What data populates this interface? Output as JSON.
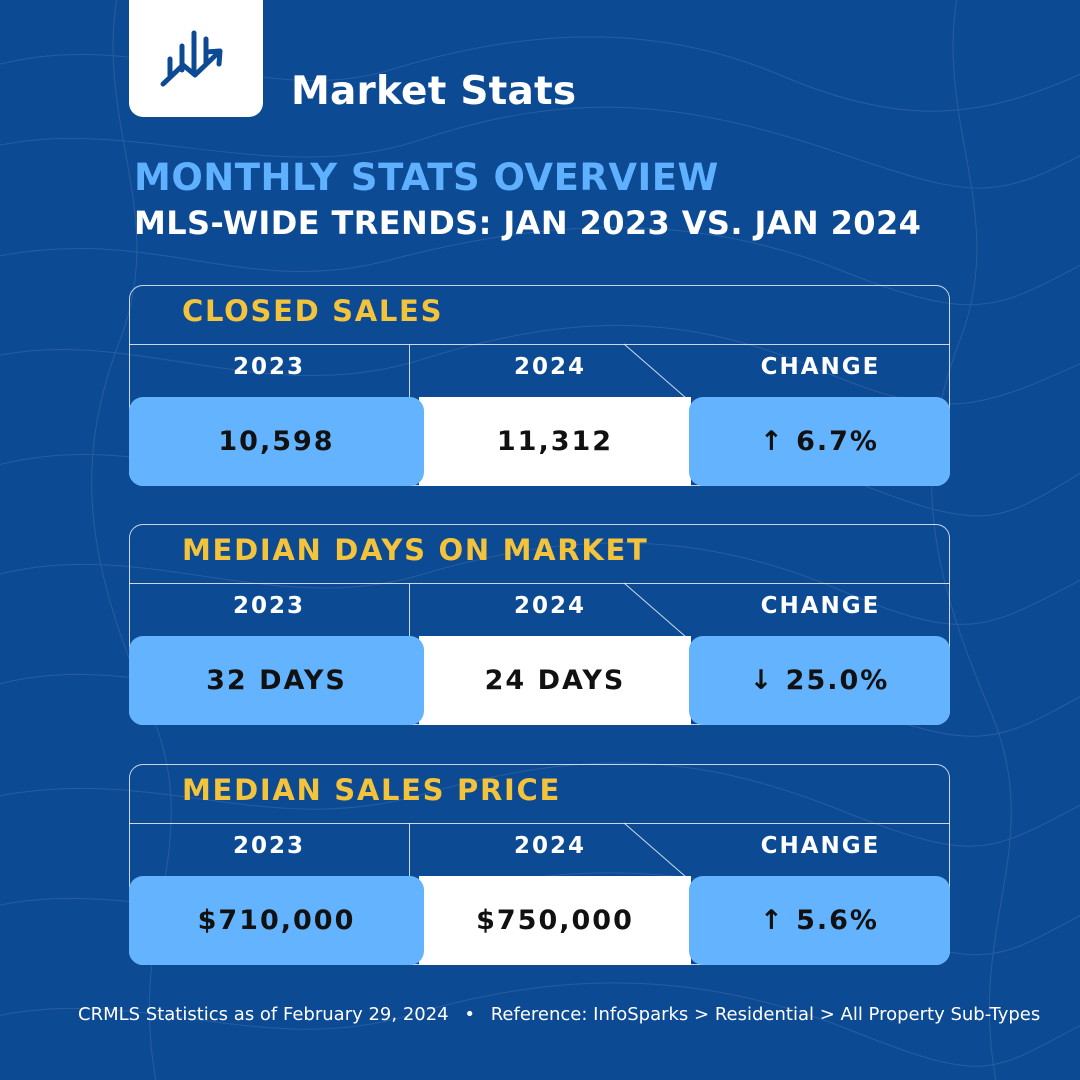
{
  "brand": {
    "logo_icon": "bar-chart-trend-icon",
    "title": "Market Stats"
  },
  "headings": {
    "overview": "MONTHLY STATS OVERVIEW",
    "trends": "MLS-WIDE TRENDS: JAN 2023 VS. JAN 2024"
  },
  "cards": [
    {
      "title": "CLOSED SALES",
      "labels": {
        "year_2023": "2023",
        "year_2024": "2024",
        "change": "CHANGE"
      },
      "values": {
        "year_2023": "10,598",
        "year_2024": "11,312",
        "change": "↑ 6.7%"
      }
    },
    {
      "title": "MEDIAN DAYS ON MARKET",
      "labels": {
        "year_2023": "2023",
        "year_2024": "2024",
        "change": "CHANGE"
      },
      "values": {
        "year_2023": "32 DAYS",
        "year_2024": "24 DAYS",
        "change": "↓ 25.0%"
      }
    },
    {
      "title": "MEDIAN SALES PRICE",
      "labels": {
        "year_2023": "2023",
        "year_2024": "2024",
        "change": "CHANGE"
      },
      "values": {
        "year_2023": "$710,000",
        "year_2024": "$750,000",
        "change": "↑ 5.6%"
      }
    }
  ],
  "footer": {
    "source": "CRMLS Statistics as of February 29, 2024",
    "separator": "•",
    "reference": "Reference: InfoSparks > Residential > All Property Sub-Types"
  },
  "colors": {
    "background": "#0d4a94",
    "accent_blue": "#63b3ff",
    "heading_blue": "#5fb0ff",
    "yellow": "#f3c33b",
    "white": "#ffffff",
    "value_text": "#111111"
  }
}
